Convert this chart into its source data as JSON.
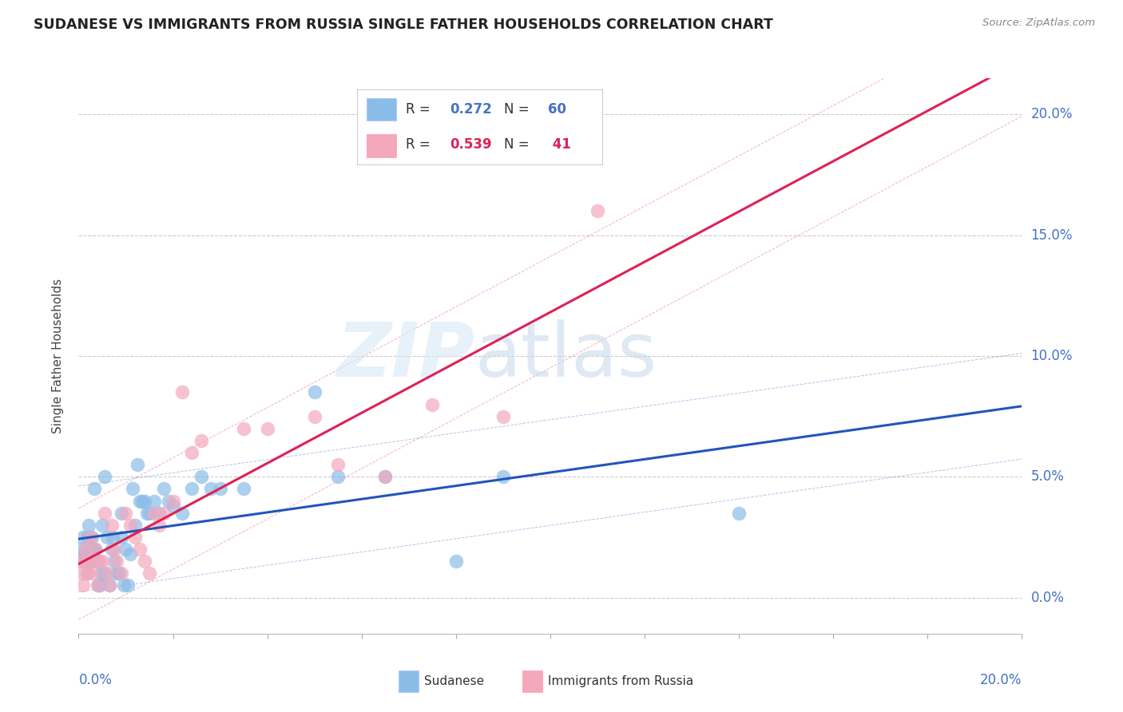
{
  "title": "SUDANESE VS IMMIGRANTS FROM RUSSIA SINGLE FATHER HOUSEHOLDS CORRELATION CHART",
  "source": "Source: ZipAtlas.com",
  "ylabel": "Single Father Households",
  "r1": 0.272,
  "n1": 60,
  "r2": 0.539,
  "n2": 41,
  "blue_color": "#8BBCE8",
  "pink_color": "#F4A8BC",
  "blue_line_color": "#2255BB",
  "pink_line_color": "#DD2255",
  "blue_fill_color": "#AACCEE",
  "pink_fill_color": "#F8C0D0",
  "xlim": [
    0.0,
    20.0
  ],
  "ylim": [
    -1.5,
    21.5
  ],
  "ytick_values": [
    0,
    5,
    10,
    15,
    20
  ],
  "ytick_labels": [
    "0.0%",
    "5.0%",
    "10.0%",
    "15.0%",
    "20.0%"
  ],
  "blue_x": [
    0.05,
    0.08,
    0.1,
    0.12,
    0.15,
    0.18,
    0.2,
    0.22,
    0.25,
    0.28,
    0.3,
    0.32,
    0.35,
    0.38,
    0.4,
    0.42,
    0.45,
    0.48,
    0.5,
    0.55,
    0.6,
    0.65,
    0.7,
    0.75,
    0.8,
    0.85,
    0.9,
    0.95,
    1.0,
    1.05,
    1.1,
    1.15,
    1.2,
    1.25,
    1.3,
    1.35,
    1.4,
    1.45,
    1.5,
    1.6,
    1.7,
    1.8,
    1.9,
    2.0,
    2.2,
    2.4,
    2.6,
    2.8,
    3.0,
    3.5,
    5.0,
    5.5,
    6.5,
    8.0,
    9.0,
    14.0,
    0.33,
    0.55,
    0.72,
    0.9
  ],
  "blue_y": [
    2.0,
    1.5,
    2.5,
    1.8,
    1.5,
    1.0,
    2.5,
    3.0,
    2.0,
    2.5,
    2.0,
    2.0,
    2.0,
    1.5,
    1.5,
    0.5,
    0.5,
    1.0,
    3.0,
    1.0,
    2.5,
    0.5,
    2.0,
    1.5,
    1.0,
    1.0,
    2.5,
    0.5,
    2.0,
    0.5,
    1.8,
    4.5,
    3.0,
    5.5,
    4.0,
    4.0,
    4.0,
    3.5,
    3.5,
    4.0,
    3.5,
    4.5,
    4.0,
    3.8,
    3.5,
    4.5,
    5.0,
    4.5,
    4.5,
    4.5,
    8.5,
    5.0,
    5.0,
    1.5,
    5.0,
    3.5,
    4.5,
    5.0,
    2.5,
    3.5
  ],
  "pink_x": [
    0.05,
    0.08,
    0.1,
    0.15,
    0.18,
    0.2,
    0.25,
    0.28,
    0.3,
    0.35,
    0.4,
    0.45,
    0.5,
    0.55,
    0.6,
    0.65,
    0.7,
    0.75,
    0.8,
    0.9,
    1.0,
    1.1,
    1.2,
    1.3,
    1.4,
    1.5,
    1.6,
    1.7,
    1.8,
    2.0,
    2.2,
    2.4,
    2.6,
    3.5,
    4.0,
    5.0,
    5.5,
    6.5,
    7.5,
    9.0,
    11.0
  ],
  "pink_y": [
    1.5,
    1.0,
    0.5,
    2.0,
    1.5,
    1.0,
    2.5,
    1.5,
    1.0,
    2.0,
    0.5,
    1.5,
    1.5,
    3.5,
    1.0,
    0.5,
    3.0,
    2.0,
    1.5,
    1.0,
    3.5,
    3.0,
    2.5,
    2.0,
    1.5,
    1.0,
    3.5,
    3.0,
    3.5,
    4.0,
    8.5,
    6.0,
    6.5,
    7.0,
    7.0,
    7.5,
    5.5,
    5.0,
    8.0,
    7.5,
    16.0
  ]
}
